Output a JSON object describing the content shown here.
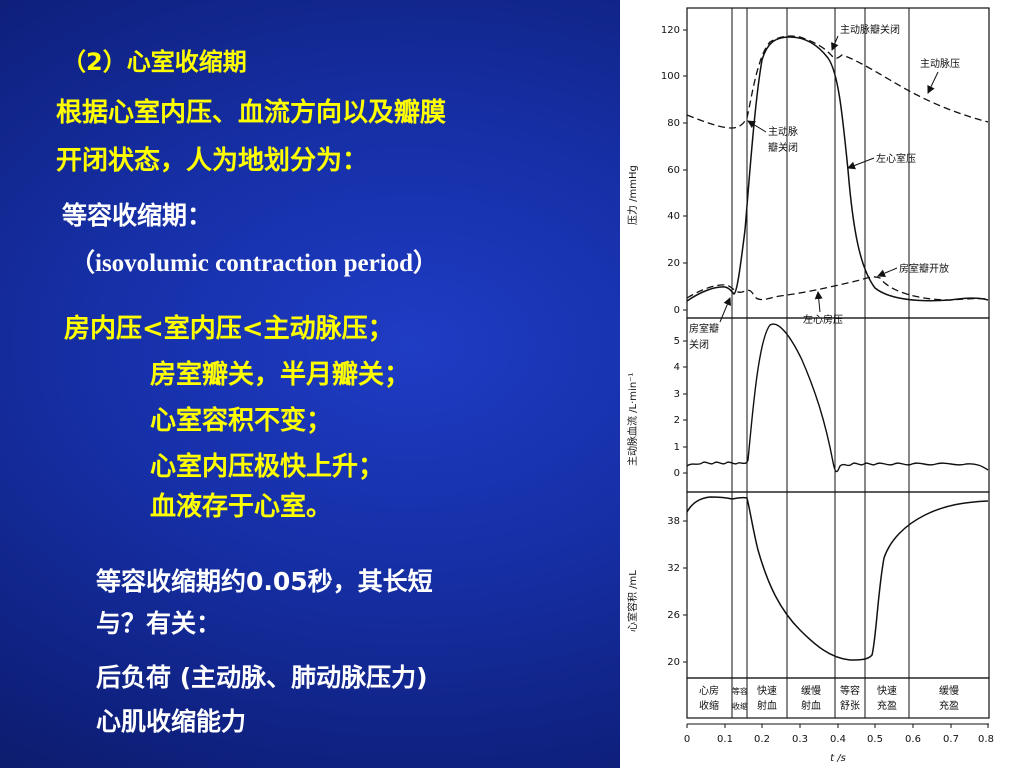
{
  "slide": {
    "title": "（2）心室收缩期",
    "line1": "根据心室内压、血流方向以及瓣膜",
    "line2": "开闭状态，人为地划分为：",
    "line3": "等容收缩期：",
    "line4": "（isovolumic contraction period）",
    "line5": "房内压<室内压<主动脉压；",
    "line6": "房室瓣关，半月瓣关；",
    "line7": "心室容积不变；",
    "line8": "心室内压极快上升；",
    "line9": "血液存于心室。",
    "line10": "等容收缩期约0.05秒，其长短",
    "line11": "与？有关：",
    "line12": "后负荷 (主动脉、肺动脉压力)",
    "line13": "心肌收缩能力"
  },
  "figure": {
    "pressure_axis": {
      "label": "压力 /mmHg",
      "ticks": [
        "120",
        "100",
        "80",
        "60",
        "40",
        "20",
        "0"
      ]
    },
    "flow_axis": {
      "label": "主动脉血流 /L·min⁻¹",
      "ticks": [
        "5",
        "4",
        "3",
        "2",
        "1",
        "0"
      ]
    },
    "volume_axis": {
      "label": "心室容积 /mL",
      "ticks": [
        "38",
        "32",
        "26",
        "20"
      ]
    },
    "time_axis": {
      "label": "t /s",
      "ticks": [
        "0",
        "0.1",
        "0.2",
        "0.3",
        "0.4",
        "0.5",
        "0.6",
        "0.7",
        "0.8"
      ]
    },
    "annotations": {
      "aortic_valve_close_top": "主动脉瓣关闭",
      "aortic_pressure": "主动脉压",
      "aortic_valve_close_1": "主动脉",
      "aortic_valve_close_2": "瓣关闭",
      "left_ventricle_pressure": "左心室压",
      "av_valve_open": "房室瓣开放",
      "av_valve_close_1": "房室瓣",
      "av_valve_close_2": "关闭",
      "left_atrium_pressure": "左心房压"
    },
    "phases": [
      {
        "l1": "心房",
        "l2": "收缩"
      },
      {
        "l1": "等容",
        "l2": "收缩"
      },
      {
        "l1": "快速",
        "l2": "射血"
      },
      {
        "l1": "缓慢",
        "l2": "射血"
      },
      {
        "l1": "等容",
        "l2": "舒张"
      },
      {
        "l1": "快速",
        "l2": "充盈"
      },
      {
        "l1": "缓慢",
        "l2": "充盈"
      }
    ]
  }
}
